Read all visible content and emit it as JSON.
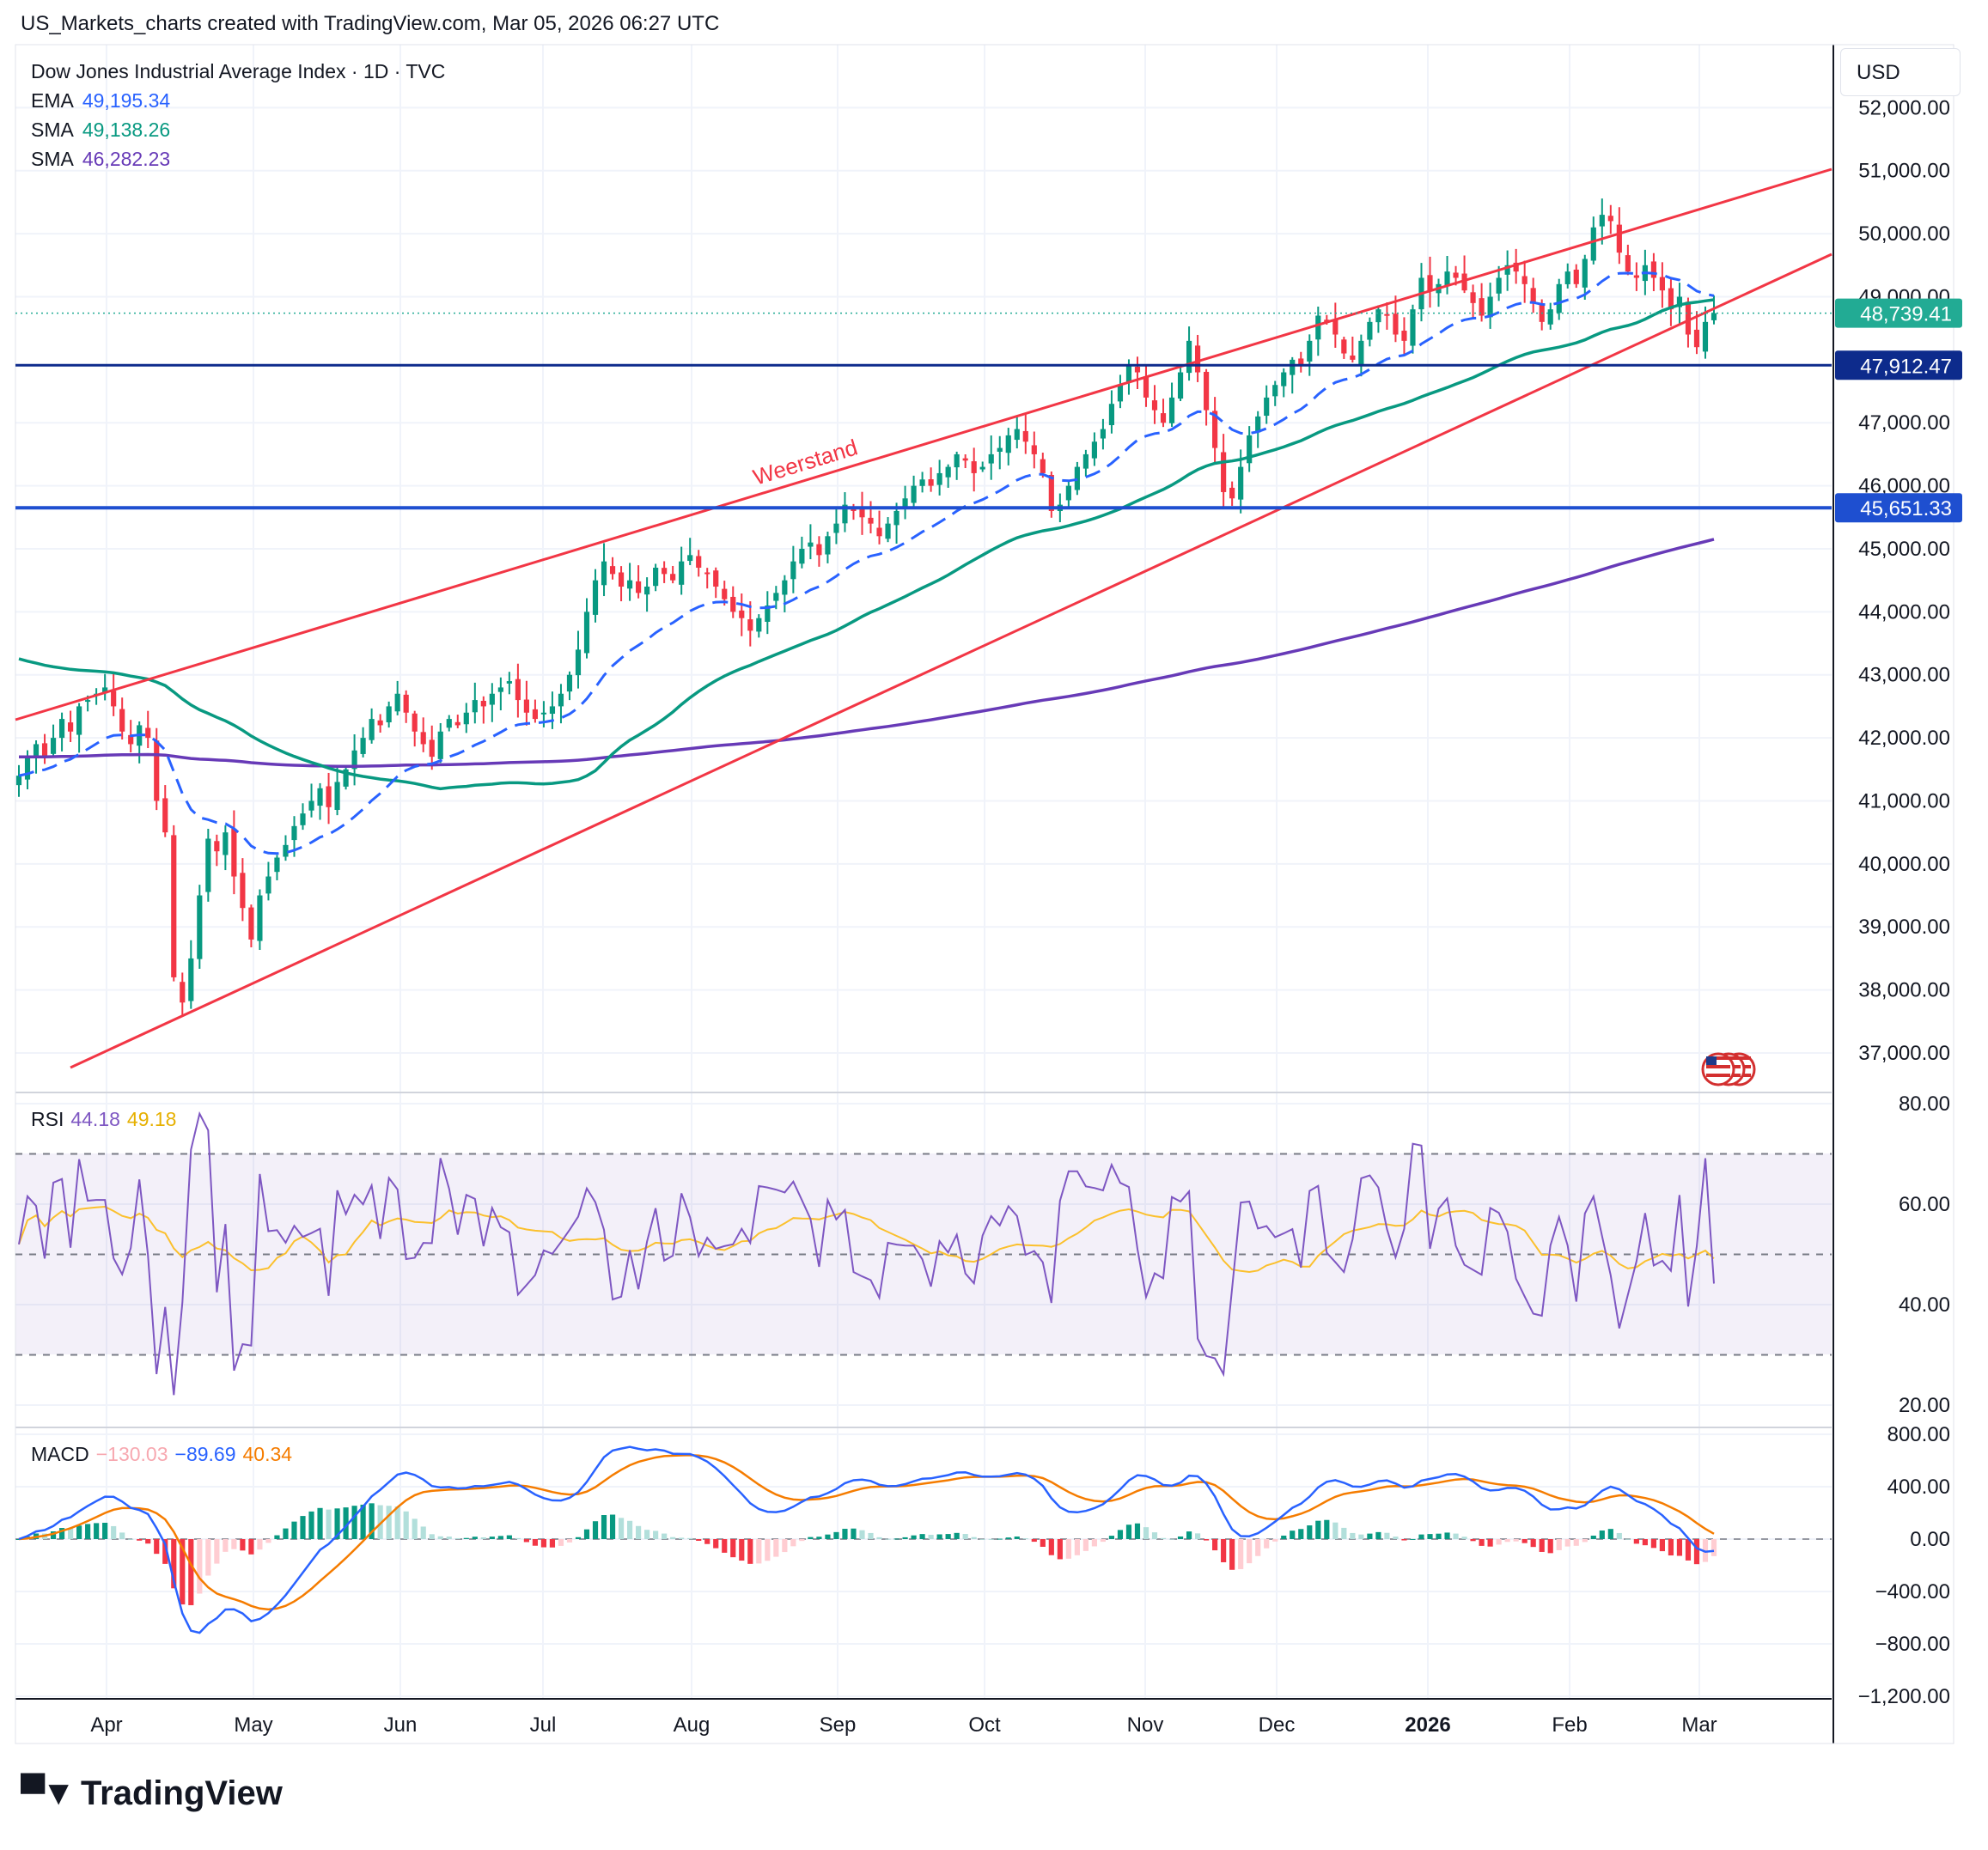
{
  "header": {
    "title": "US_Markets_charts created with TradingView.com, Mar 05, 2026 06:27 UTC"
  },
  "legend": {
    "symbol": "Dow Jones Industrial Average Index · 1D · TVC",
    "lines": [
      {
        "label": "EMA",
        "value": "49,195.34",
        "color": "#2962ff"
      },
      {
        "label": "SMA",
        "value": "49,138.26",
        "color": "#089981"
      },
      {
        "label": "SMA",
        "value": "46,282.23",
        "color": "#673ab7"
      }
    ]
  },
  "currency": "USD",
  "price_labels": [
    {
      "value": "48,739.41",
      "color": "#22ab94"
    },
    {
      "value": "47,912.47",
      "color": "#0d2b8c"
    },
    {
      "value": "45,651.33",
      "color": "#1e4fd0"
    }
  ],
  "annotation": {
    "text": "Weerstand",
    "color": "#f23645"
  },
  "rsi_legend": {
    "label": "RSI",
    "values": [
      "44.18",
      "49.18"
    ],
    "colors": [
      "#7e57c2",
      "#fbc02d"
    ]
  },
  "macd_legend": {
    "label": "MACD",
    "values": [
      "−130.03",
      "−89.69",
      "40.34"
    ],
    "colors": [
      "#f7a8b0",
      "#2962ff",
      "#f57c00"
    ]
  },
  "brand": "TradingView",
  "chart_data": [
    {
      "type": "candlestick",
      "title": "Dow Jones Industrial Average Index · 1D · TVC",
      "x_ticks": [
        "Apr",
        "May",
        "Jun",
        "Jul",
        "Aug",
        "Sep",
        "Oct",
        "Nov",
        "Dec",
        "2026",
        "Feb",
        "Mar"
      ],
      "y_ticks": [
        "37,000.00",
        "38,000.00",
        "39,000.00",
        "40,000.00",
        "41,000.00",
        "42,000.00",
        "43,000.00",
        "44,000.00",
        "45,000.00",
        "46,000.00",
        "47,000.00",
        "49,000.00",
        "50,000.00",
        "51,000.00",
        "52,000.00"
      ],
      "ylim": [
        36400,
        53000
      ],
      "closes": [
        41400,
        41700,
        41900,
        41700,
        42000,
        42300,
        42100,
        42500,
        42600,
        42700,
        42800,
        42500,
        42100,
        41900,
        42200,
        42000,
        41000,
        40500,
        38200,
        37800,
        38500,
        39500,
        40400,
        40200,
        40500,
        39800,
        39300,
        38800,
        39500,
        39800,
        40100,
        40300,
        40600,
        40800,
        41000,
        41200,
        40900,
        41300,
        41500,
        41800,
        42000,
        42300,
        42200,
        42500,
        42700,
        42400,
        42100,
        41900,
        41700,
        42100,
        42300,
        42200,
        42400,
        42600,
        42500,
        42700,
        42800,
        42900,
        42600,
        42400,
        42300,
        42400,
        42500,
        42700,
        43000,
        43400,
        44000,
        44500,
        44800,
        44600,
        44400,
        44500,
        44300,
        44400,
        44700,
        44600,
        44500,
        44800,
        44900,
        44700,
        44600,
        44400,
        44200,
        44000,
        43900,
        43700,
        43900,
        44100,
        44300,
        44500,
        44800,
        45000,
        45100,
        44900,
        45200,
        45400,
        45700,
        45600,
        45500,
        45400,
        45200,
        45400,
        45600,
        45800,
        46000,
        46100,
        46000,
        46200,
        46300,
        46500,
        46400,
        46200,
        46300,
        46500,
        46600,
        46800,
        46900,
        46700,
        46500,
        46200,
        45600,
        45700,
        46000,
        46300,
        46500,
        46700,
        46900,
        47300,
        47600,
        47900,
        47800,
        47400,
        47200,
        47000,
        47400,
        47800,
        48300,
        47800,
        47200,
        46600,
        45900,
        45800,
        46300,
        46800,
        47100,
        47400,
        47600,
        47800,
        48000,
        47900,
        48300,
        48700,
        48600,
        48400,
        48100,
        48000,
        48300,
        48600,
        48800,
        48700,
        48400,
        48300,
        48800,
        49300,
        49100,
        49200,
        49400,
        49300,
        49100,
        48900,
        48700,
        49000,
        49300,
        49500,
        49400,
        49200,
        48900,
        48600,
        48800,
        49200,
        49400,
        49200,
        49600,
        50100,
        50300,
        50200,
        49700,
        49400,
        49300,
        49500,
        49300,
        49100,
        48800,
        49000,
        48400,
        48200,
        48600,
        48739
      ],
      "moving_averages": [
        {
          "label": "EMA",
          "value": 49195.34,
          "color": "#2962ff"
        },
        {
          "label": "SMA",
          "value": 49138.26,
          "color": "#089981"
        },
        {
          "label": "SMA",
          "value": 46282.23,
          "color": "#673ab7"
        }
      ],
      "horizontal_levels": [
        47912.47,
        45651.33
      ],
      "last_price": 48739.41
    },
    {
      "type": "line",
      "title": "RSI",
      "y_ticks": [
        "20.00",
        "40.00",
        "60.00",
        "80.00"
      ],
      "ylim": [
        16,
        84
      ],
      "band": [
        30,
        70
      ],
      "series": [
        {
          "name": "RSI",
          "color": "#7e57c2",
          "last": 44.18
        },
        {
          "name": "RSI-MA",
          "color": "#fbc02d",
          "last": 49.18
        }
      ]
    },
    {
      "type": "line",
      "title": "MACD",
      "y_ticks": [
        "−1,200.00",
        "−800.00",
        "−400.00",
        "0.00",
        "400.00",
        "800.00"
      ],
      "ylim": [
        -1200,
        800
      ],
      "series": [
        {
          "name": "Histogram",
          "color": "#f23645",
          "last": -130.03
        },
        {
          "name": "MACD",
          "color": "#2962ff",
          "last": -89.69
        },
        {
          "name": "Signal",
          "color": "#f57c00",
          "last": 40.34
        }
      ]
    }
  ]
}
